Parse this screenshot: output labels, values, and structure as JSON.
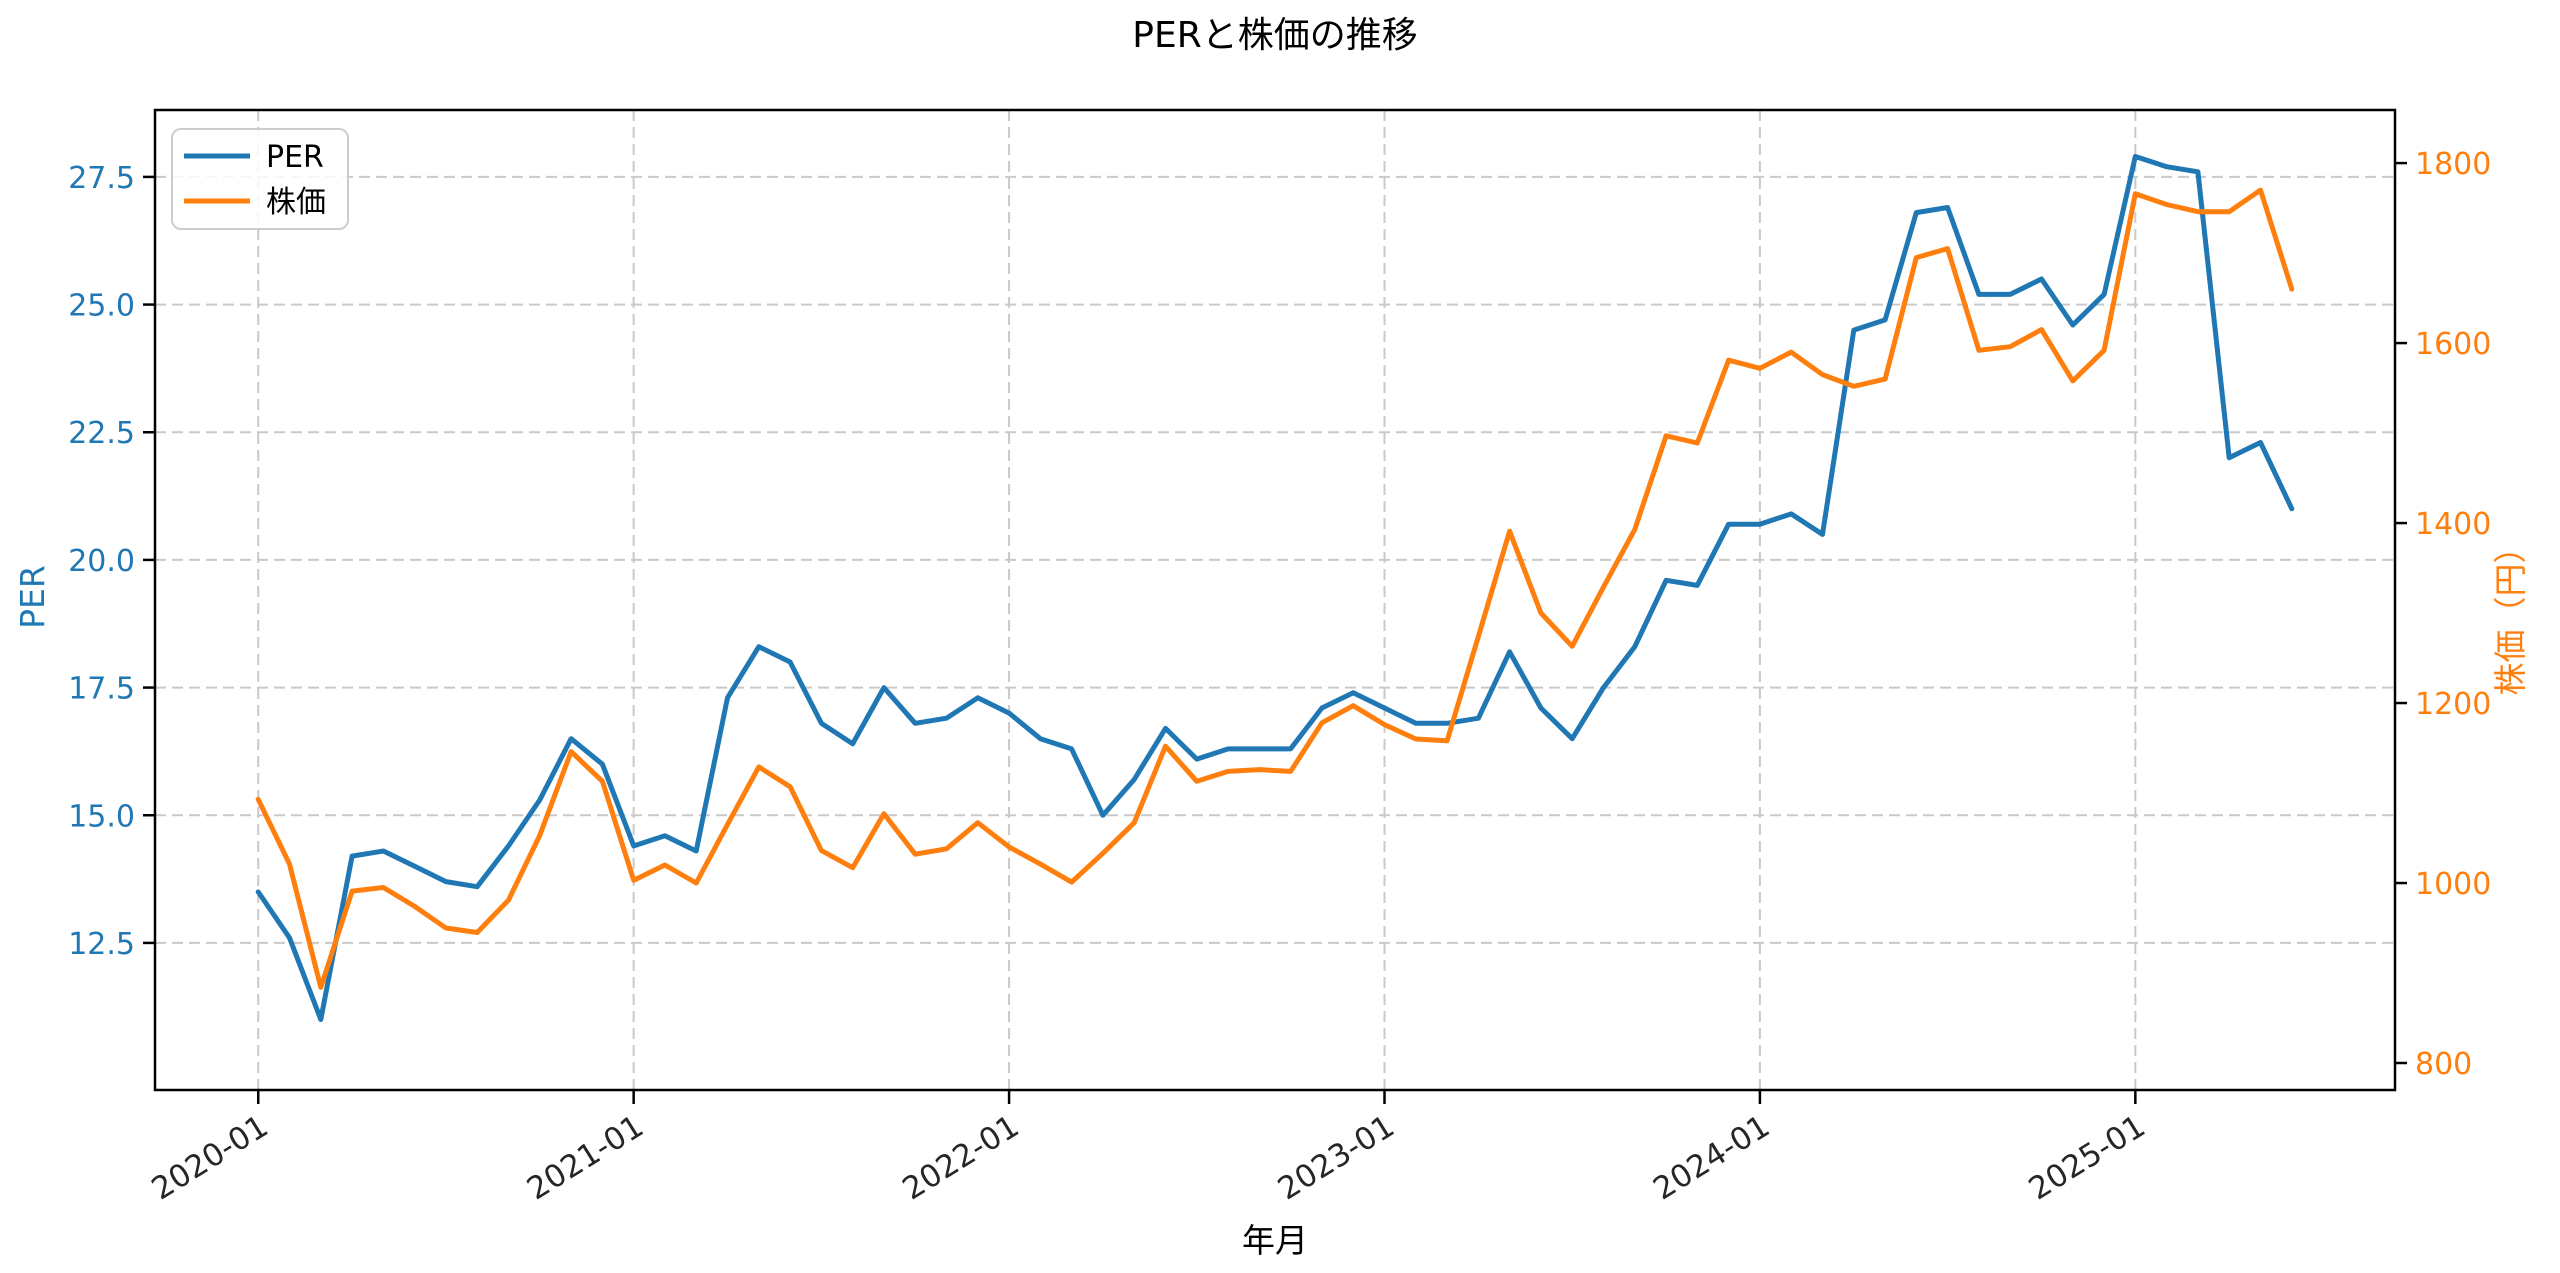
{
  "chart_data": {
    "type": "line",
    "title": "PERと株価の推移",
    "xlabel": "年月",
    "ylabel_left": "PER",
    "ylabel_right": "株価（円）",
    "grid": true,
    "legend_position": "upper-left",
    "colors": {
      "per": "#1f77b4",
      "price": "#ff7f0e",
      "grid": "#c9c9c9",
      "spine": "#000000",
      "tick_label_x": "#262626"
    },
    "x": [
      "2020-01",
      "2020-02",
      "2020-03",
      "2020-04",
      "2020-05",
      "2020-06",
      "2020-07",
      "2020-08",
      "2020-09",
      "2020-10",
      "2020-11",
      "2020-12",
      "2021-01",
      "2021-02",
      "2021-03",
      "2021-04",
      "2021-05",
      "2021-06",
      "2021-07",
      "2021-08",
      "2021-09",
      "2021-10",
      "2021-11",
      "2021-12",
      "2022-01",
      "2022-02",
      "2022-03",
      "2022-04",
      "2022-05",
      "2022-06",
      "2022-07",
      "2022-08",
      "2022-09",
      "2022-10",
      "2022-11",
      "2022-12",
      "2023-01",
      "2023-02",
      "2023-03",
      "2023-04",
      "2023-05",
      "2023-06",
      "2023-07",
      "2023-08",
      "2023-09",
      "2023-10",
      "2023-11",
      "2023-12",
      "2024-01",
      "2024-02",
      "2024-03",
      "2024-04",
      "2024-05",
      "2024-06",
      "2024-07",
      "2024-08",
      "2024-09",
      "2024-10",
      "2024-11",
      "2024-12",
      "2025-01",
      "2025-02",
      "2025-03",
      "2025-04",
      "2025-05",
      "2025-06"
    ],
    "series": [
      {
        "name": "PER",
        "axis": "left",
        "values": [
          13.5,
          12.6,
          11.0,
          14.2,
          14.3,
          14.0,
          13.7,
          13.6,
          14.4,
          15.3,
          16.5,
          16.0,
          14.4,
          14.6,
          14.3,
          17.3,
          18.3,
          18.0,
          16.8,
          16.4,
          17.5,
          16.8,
          16.9,
          17.3,
          17.0,
          16.5,
          16.3,
          15.0,
          15.7,
          16.7,
          16.1,
          16.3,
          16.3,
          16.3,
          17.1,
          17.4,
          17.1,
          16.8,
          16.8,
          16.9,
          18.2,
          17.1,
          16.5,
          17.5,
          18.3,
          19.6,
          19.5,
          20.7,
          20.7,
          20.9,
          20.5,
          24.5,
          24.7,
          26.8,
          26.9,
          25.2,
          25.2,
          25.5,
          24.6,
          25.2,
          27.9,
          27.7,
          27.6,
          22.0,
          22.3,
          21.0
        ]
      },
      {
        "name": "株価",
        "axis": "right",
        "values": [
          1093,
          1021,
          884,
          991,
          995,
          974,
          950,
          945,
          981,
          1053,
          1146,
          1113,
          1003,
          1020,
          1000,
          1065,
          1129,
          1107,
          1036,
          1017,
          1077,
          1032,
          1038,
          1067,
          1040,
          1021,
          1001,
          1033,
          1067,
          1152,
          1113,
          1124,
          1126,
          1124,
          1178,
          1197,
          1176,
          1160,
          1158,
          1274,
          1391,
          1300,
          1263,
          1329,
          1393,
          1497,
          1489,
          1581,
          1572,
          1590,
          1565,
          1552,
          1560,
          1695,
          1705,
          1592,
          1596,
          1615,
          1558,
          1592,
          1766,
          1754,
          1746,
          1746,
          1770,
          1660
        ]
      }
    ],
    "x_ticks": [
      "2020-01",
      "2021-01",
      "2022-01",
      "2023-01",
      "2024-01",
      "2025-01"
    ],
    "y_ticks_left": [
      12.5,
      15.0,
      17.5,
      20.0,
      22.5,
      25.0,
      27.5
    ],
    "y_ticks_right": [
      800,
      1000,
      1200,
      1400,
      1600,
      1800
    ],
    "ylim_left": [
      9.62,
      28.81
    ],
    "ylim_right": [
      770,
      1859
    ],
    "xlim_index": [
      -3.3,
      68.3
    ]
  }
}
